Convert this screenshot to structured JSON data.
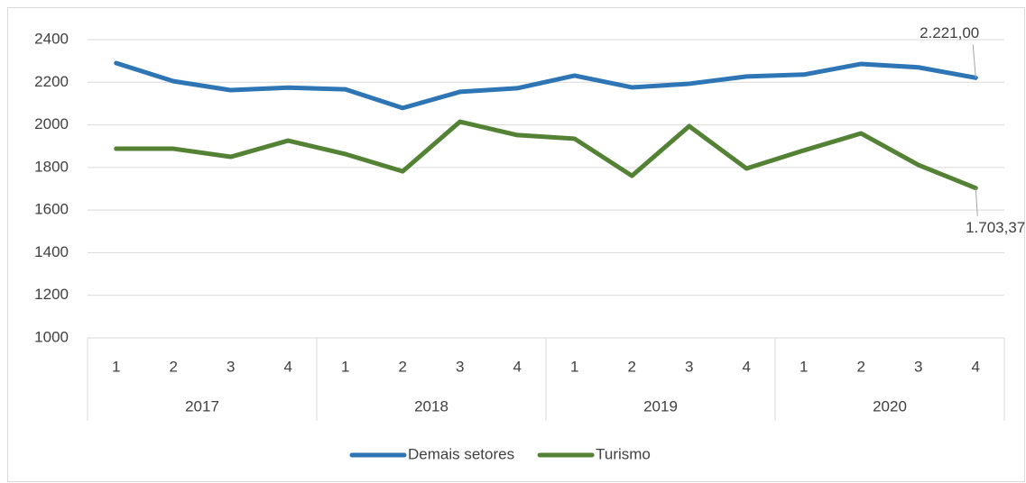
{
  "chart_data": {
    "type": "line",
    "categories": [
      "1",
      "2",
      "3",
      "4",
      "1",
      "2",
      "3",
      "4",
      "1",
      "2",
      "3",
      "4",
      "1",
      "2",
      "3",
      "4"
    ],
    "groups": [
      "2017",
      "2018",
      "2019",
      "2020"
    ],
    "series": [
      {
        "name": "Demais setores",
        "color": "#2e75b6",
        "values": [
          2290,
          2205,
          2163,
          2175,
          2167,
          2079,
          2155,
          2172,
          2231,
          2176,
          2193,
          2227,
          2236,
          2286,
          2270,
          2221
        ],
        "value_labels": [
          null,
          null,
          null,
          null,
          null,
          null,
          null,
          null,
          null,
          null,
          null,
          null,
          null,
          null,
          null,
          "2.221,00"
        ]
      },
      {
        "name": "Turismo",
        "color": "#548235",
        "values": [
          1888,
          1888,
          1850,
          1926,
          1863,
          1782,
          2015,
          1952,
          1935,
          1761,
          1994,
          1795,
          1880,
          1960,
          1812,
          1703.37
        ],
        "value_labels": [
          null,
          null,
          null,
          null,
          null,
          null,
          null,
          null,
          null,
          null,
          null,
          null,
          null,
          null,
          null,
          "1.703,37"
        ]
      }
    ],
    "ylim": [
      1000,
      2400
    ],
    "yticks": [
      1000,
      1200,
      1400,
      1600,
      1800,
      2000,
      2200,
      2400
    ],
    "grid": true,
    "legend": "bottom"
  }
}
